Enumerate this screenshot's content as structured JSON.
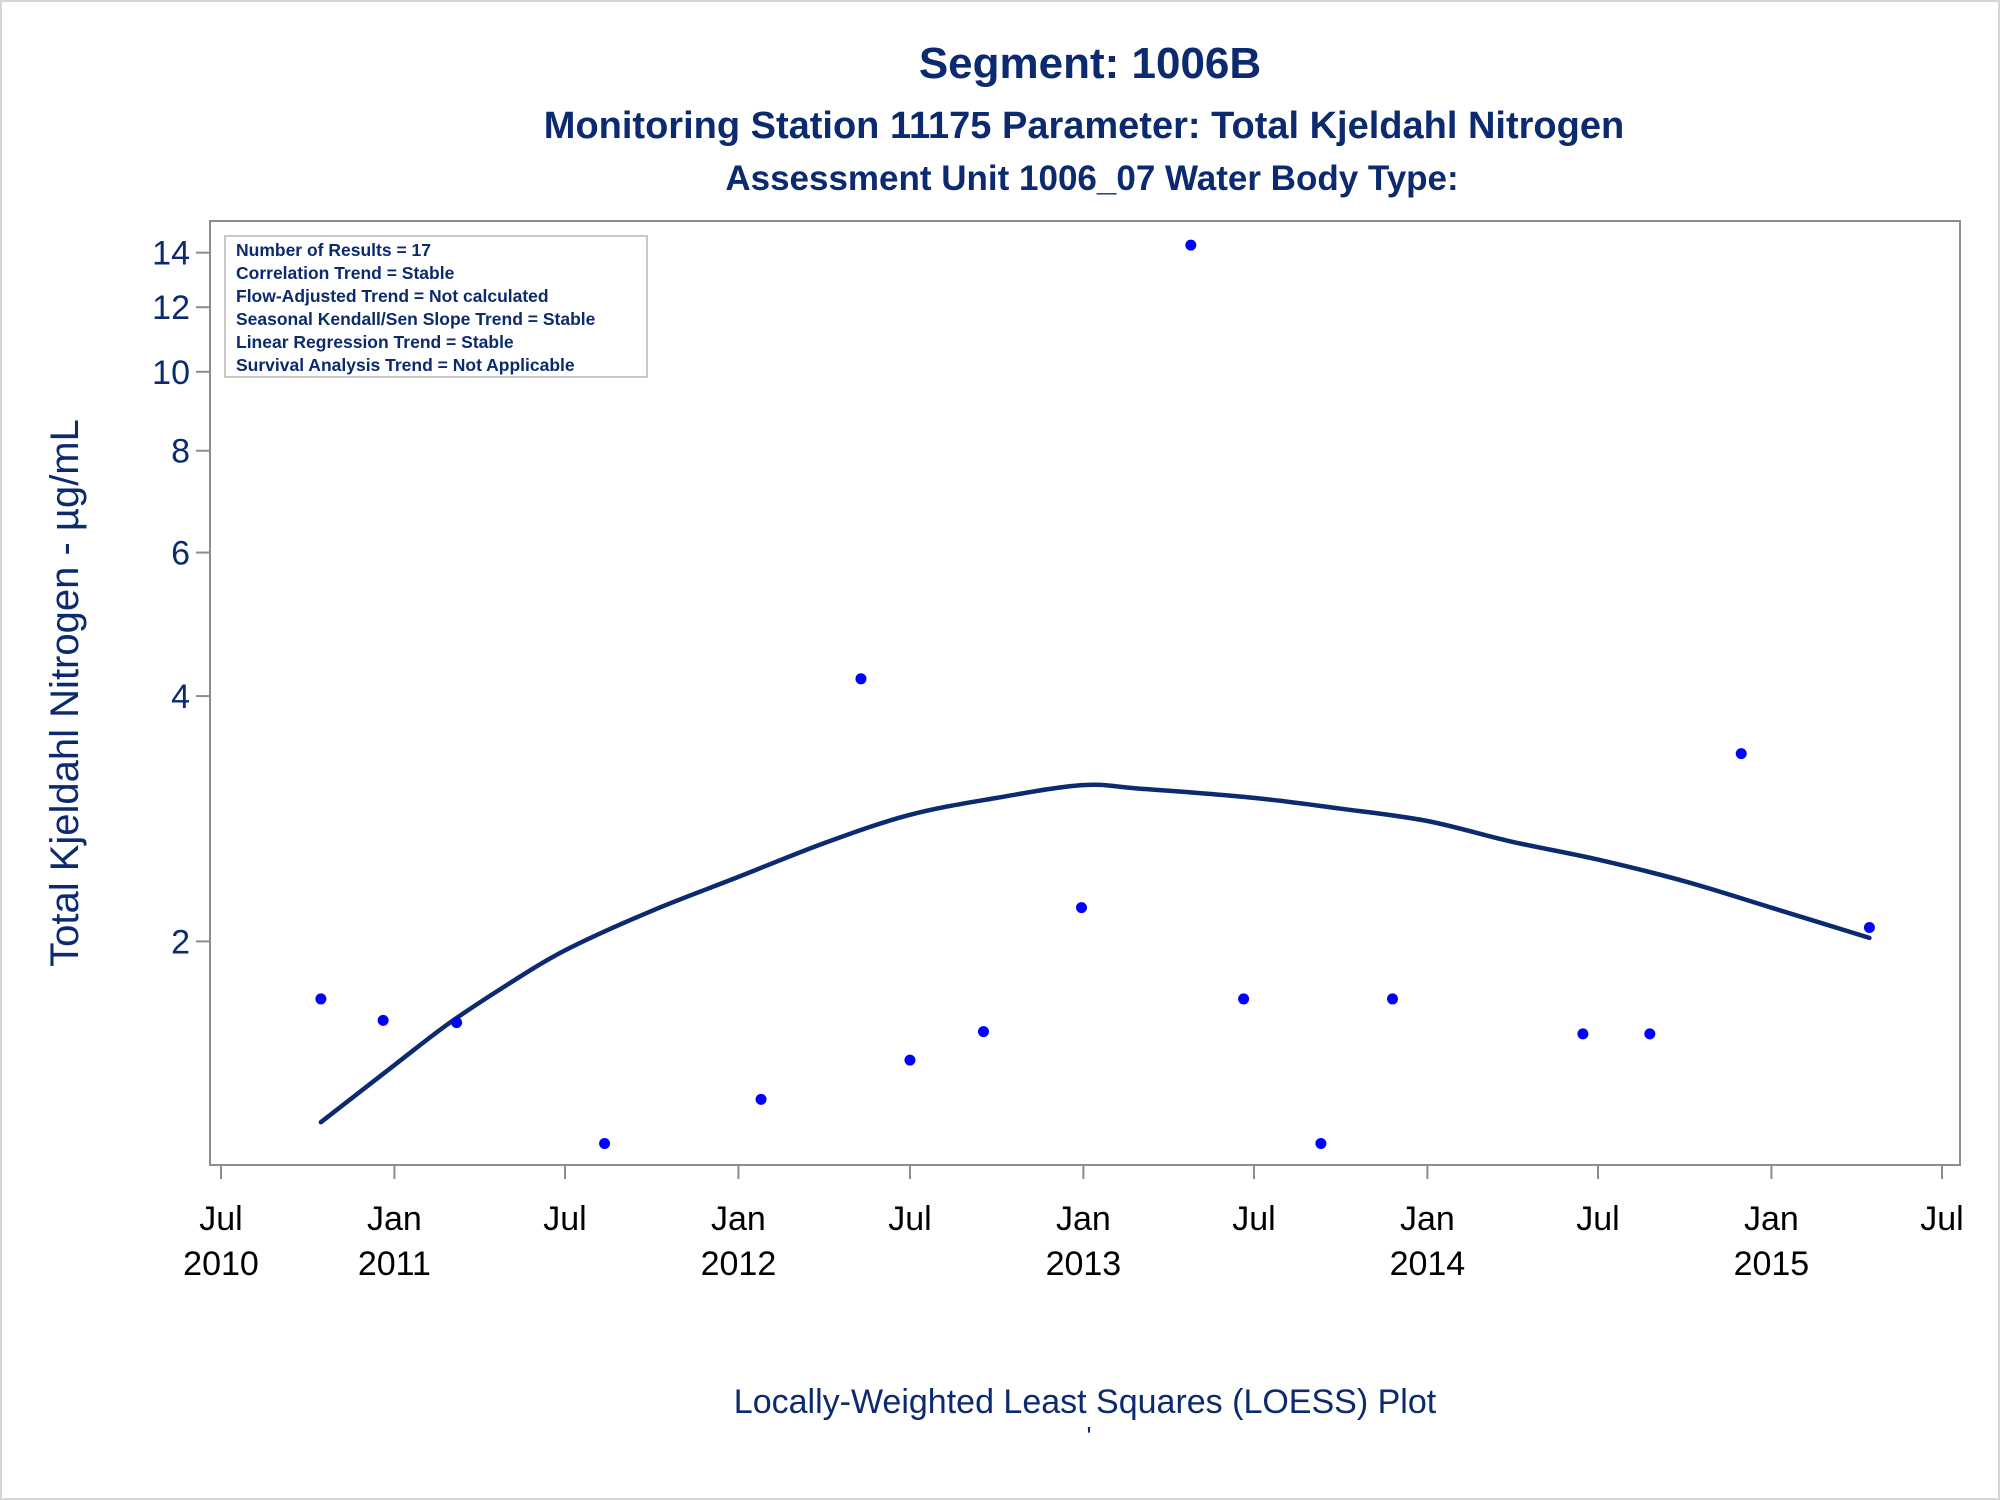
{
  "colors": {
    "title": "#0b2a6f",
    "points": "#0000ff",
    "loess_line": "#0b2a6f",
    "axis": "#8c8c8c",
    "frame": "#d6d6d6"
  },
  "chart_data": {
    "type": "scatter",
    "title": "Segment: 1006B",
    "subtitle": "Monitoring Station 11175 Parameter: Total Kjeldahl Nitrogen",
    "subtitle2": "Assessment Unit 1006_07   Water Body Type:",
    "xlabel": "Locally-Weighted Least Squares (LOESS) Plot",
    "footnote": "'",
    "ylabel": "Total Kjeldahl Nitrogen -  µg/mL",
    "y_scale": "log",
    "ylim": [
      1.1,
      14.8
    ],
    "xlim": [
      "2010-07-01",
      "2015-07-01"
    ],
    "yticks": [
      2,
      4,
      6,
      8,
      10,
      12,
      14
    ],
    "xticks": [
      {
        "date": "2010-07-01",
        "line1": "Jul",
        "line2": "2010"
      },
      {
        "date": "2011-01-01",
        "line1": "Jan",
        "line2": "2011"
      },
      {
        "date": "2011-07-01",
        "line1": "Jul",
        "line2": ""
      },
      {
        "date": "2012-01-01",
        "line1": "Jan",
        "line2": "2012"
      },
      {
        "date": "2012-07-01",
        "line1": "Jul",
        "line2": ""
      },
      {
        "date": "2013-01-01",
        "line1": "Jan",
        "line2": "2013"
      },
      {
        "date": "2013-07-01",
        "line1": "Jul",
        "line2": ""
      },
      {
        "date": "2014-01-01",
        "line1": "Jan",
        "line2": "2014"
      },
      {
        "date": "2014-07-01",
        "line1": "Jul",
        "line2": ""
      },
      {
        "date": "2015-01-01",
        "line1": "Jan",
        "line2": "2015"
      },
      {
        "date": "2015-07-01",
        "line1": "Jul",
        "line2": ""
      }
    ],
    "legend_position": "top-left",
    "legend_lines": [
      "Number of Results = 17",
      "Correlation Trend = Stable",
      "Flow-Adjusted Trend = Not calculated",
      "Seasonal Kendall/Sen Slope Trend = Stable",
      "Linear Regression Trend = Stable",
      "Survival Analysis Trend = Not Applicable"
    ],
    "series": [
      {
        "kind": "points",
        "points": [
          {
            "x": "2010-10-15",
            "y": 1.7
          },
          {
            "x": "2010-12-20",
            "y": 1.6
          },
          {
            "x": "2011-03-08",
            "y": 1.59
          },
          {
            "x": "2011-08-12",
            "y": 1.13
          },
          {
            "x": "2012-01-25",
            "y": 1.28
          },
          {
            "x": "2012-05-10",
            "y": 4.2
          },
          {
            "x": "2012-07-01",
            "y": 1.43
          },
          {
            "x": "2012-09-17",
            "y": 1.55
          },
          {
            "x": "2012-12-30",
            "y": 2.2
          },
          {
            "x": "2013-04-25",
            "y": 14.3
          },
          {
            "x": "2013-06-20",
            "y": 1.7
          },
          {
            "x": "2013-09-10",
            "y": 1.13
          },
          {
            "x": "2013-11-25",
            "y": 1.7
          },
          {
            "x": "2014-06-15",
            "y": 1.54
          },
          {
            "x": "2014-08-25",
            "y": 1.54
          },
          {
            "x": "2014-11-30",
            "y": 3.4
          },
          {
            "x": "2015-04-15",
            "y": 2.08
          }
        ]
      },
      {
        "kind": "loess",
        "points": [
          {
            "x": "2010-10-15",
            "y": 1.2
          },
          {
            "x": "2011-01-01",
            "y": 1.41
          },
          {
            "x": "2011-03-01",
            "y": 1.59
          },
          {
            "x": "2011-05-01",
            "y": 1.77
          },
          {
            "x": "2011-07-01",
            "y": 1.95
          },
          {
            "x": "2011-10-01",
            "y": 2.18
          },
          {
            "x": "2012-01-01",
            "y": 2.4
          },
          {
            "x": "2012-04-01",
            "y": 2.64
          },
          {
            "x": "2012-07-01",
            "y": 2.86
          },
          {
            "x": "2012-10-01",
            "y": 3.0
          },
          {
            "x": "2012-12-31",
            "y": 3.11
          },
          {
            "x": "2013-03-01",
            "y": 3.08
          },
          {
            "x": "2013-07-01",
            "y": 3.0
          },
          {
            "x": "2013-10-01",
            "y": 2.91
          },
          {
            "x": "2014-01-01",
            "y": 2.81
          },
          {
            "x": "2014-04-01",
            "y": 2.65
          },
          {
            "x": "2014-07-01",
            "y": 2.52
          },
          {
            "x": "2014-10-01",
            "y": 2.37
          },
          {
            "x": "2015-01-01",
            "y": 2.2
          },
          {
            "x": "2015-04-15",
            "y": 2.02
          }
        ]
      }
    ]
  }
}
